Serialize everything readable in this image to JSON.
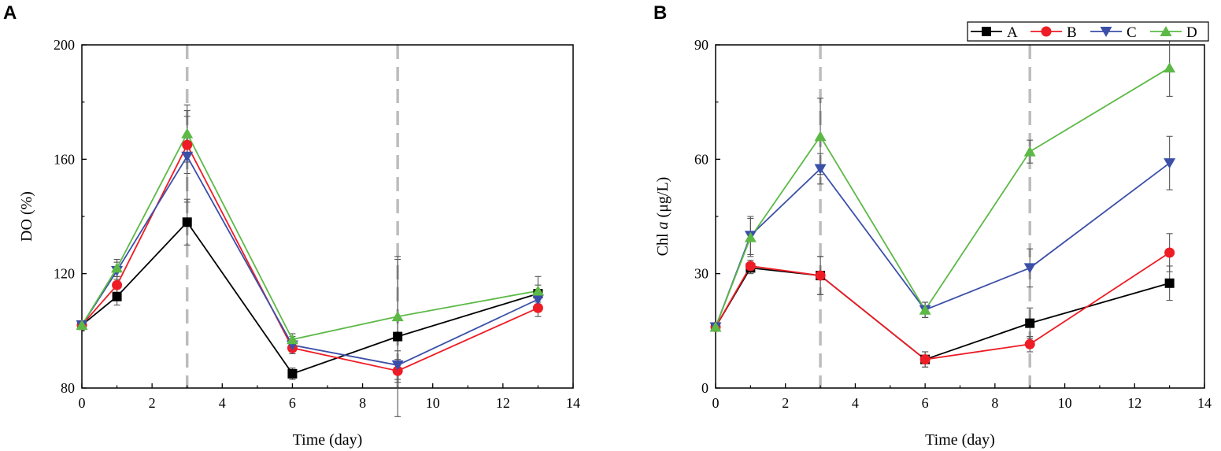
{
  "figure": {
    "colors": {
      "A": "#000000",
      "B": "#ee1c25",
      "C": "#3b4fa8",
      "D": "#5cb946",
      "guide": "#bdbdbd",
      "errorbar": "#555555"
    },
    "legend": [
      "A",
      "B",
      "C",
      "D"
    ]
  },
  "chart_data": [
    {
      "type": "line",
      "panel": "A",
      "xlabel": "Time (day)",
      "ylabel": "DO (%)",
      "xlim": [
        0,
        14
      ],
      "ylim": [
        80,
        200
      ],
      "xticks": [
        0,
        2,
        4,
        6,
        8,
        10,
        12,
        14
      ],
      "yticks": [
        80,
        120,
        160,
        200
      ],
      "guide_lines_x": [
        3,
        9
      ],
      "x": [
        0,
        1,
        3,
        6,
        9,
        13
      ],
      "series": [
        {
          "name": "A",
          "marker": "square",
          "values": [
            102,
            112,
            138,
            85,
            98,
            113
          ],
          "errors": [
            1.5,
            3,
            8,
            2,
            28,
            3
          ]
        },
        {
          "name": "B",
          "marker": "circle",
          "values": [
            102,
            116,
            165,
            94,
            86,
            108
          ],
          "errors": [
            1.5,
            3,
            10,
            2,
            4,
            3
          ]
        },
        {
          "name": "C",
          "marker": "triangle-down",
          "values": [
            102,
            121,
            161,
            95,
            88,
            111
          ],
          "errors": [
            1.5,
            3,
            16,
            3,
            5,
            3
          ]
        },
        {
          "name": "D",
          "marker": "triangle-up",
          "values": [
            102,
            122,
            169,
            97,
            105,
            114
          ],
          "errors": [
            1.5,
            3,
            10,
            2,
            20,
            5
          ]
        }
      ]
    },
    {
      "type": "line",
      "panel": "B",
      "xlabel": "Time (day)",
      "ylabel_main": "Chl ",
      "ylabel_italic": "a",
      "ylabel_unit": " (μg/L)",
      "xlim": [
        0,
        14
      ],
      "ylim": [
        0,
        90
      ],
      "xticks": [
        0,
        2,
        4,
        6,
        8,
        10,
        12,
        14
      ],
      "yticks": [
        0,
        30,
        60,
        90
      ],
      "guide_lines_x": [
        3,
        9
      ],
      "x": [
        0,
        1,
        3,
        6,
        9,
        13
      ],
      "series": [
        {
          "name": "A",
          "marker": "square",
          "values": [
            16,
            31.5,
            29.5,
            7.5,
            17,
            27.5
          ],
          "errors": [
            1,
            1.5,
            5,
            2,
            4,
            4.5
          ]
        },
        {
          "name": "B",
          "marker": "circle",
          "values": [
            16,
            32,
            29.5,
            7.5,
            11.5,
            35.5
          ],
          "errors": [
            1,
            1.5,
            5,
            2,
            2,
            5
          ]
        },
        {
          "name": "C",
          "marker": "triangle-down",
          "values": [
            16,
            40,
            57.5,
            20.5,
            31.5,
            59
          ],
          "errors": [
            1,
            5,
            4,
            2,
            5,
            7
          ]
        },
        {
          "name": "D",
          "marker": "triangle-up",
          "values": [
            16,
            39.5,
            66,
            20.5,
            62,
            84
          ],
          "errors": [
            1,
            5,
            10,
            2,
            3,
            7.5
          ]
        }
      ]
    }
  ]
}
